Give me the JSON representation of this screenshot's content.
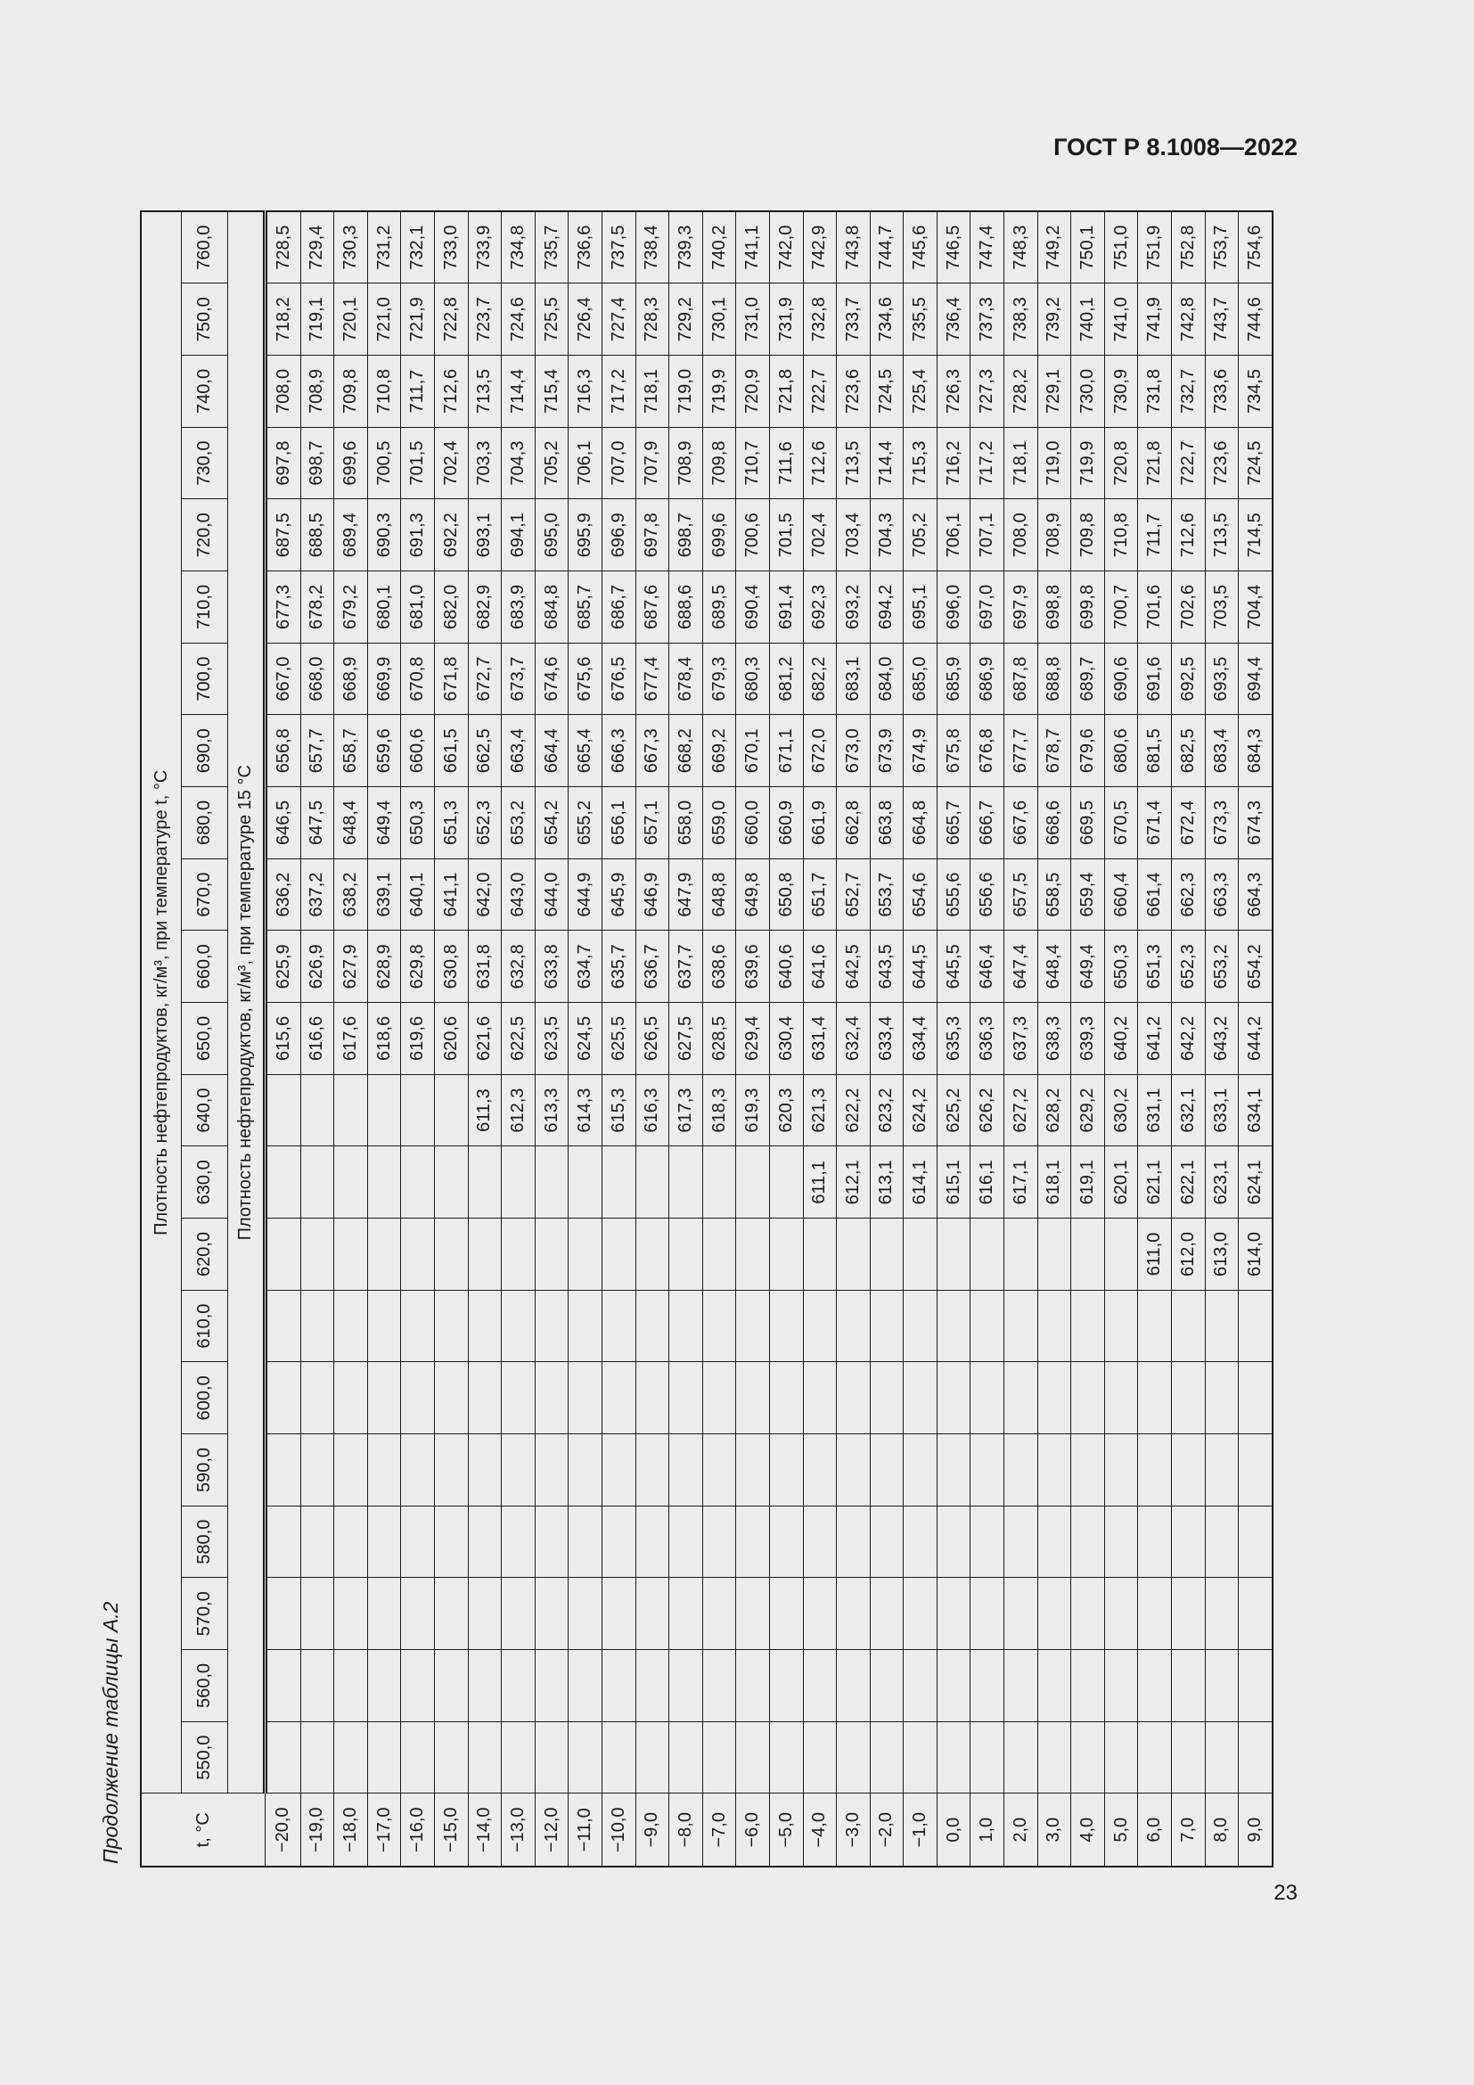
{
  "header": {
    "doc_code": "ГОСТ Р 8.1008—2022"
  },
  "caption": "Продолжение таблицы А.2",
  "footer": {
    "page_number": "23"
  },
  "table": {
    "t_header": "t, °C",
    "top_title": "Плотность нефтепродуктов, кг/м³, при температуре t, °C",
    "bottom_title": "Плотность нефтепродуктов, кг/м³, при температуре 15 °C",
    "densities": [
      "550,0",
      "560,0",
      "570,0",
      "580,0",
      "590,0",
      "600,0",
      "610,0",
      "620,0",
      "630,0",
      "640,0",
      "650,0",
      "660,0",
      "670,0",
      "680,0",
      "690,0",
      "700,0",
      "710,0",
      "720,0",
      "730,0",
      "740,0",
      "750,0",
      "760,0"
    ],
    "rows": [
      {
        "t": "−20,0",
        "values": [
          "",
          "",
          "",
          "",
          "",
          "",
          "",
          "",
          "",
          "",
          "615,6",
          "625,9",
          "636,2",
          "646,5",
          "656,8",
          "667,0",
          "677,3",
          "687,5",
          "697,8",
          "708,0",
          "718,2",
          "728,5"
        ]
      },
      {
        "t": "−19,0",
        "values": [
          "",
          "",
          "",
          "",
          "",
          "",
          "",
          "",
          "",
          "",
          "616,6",
          "626,9",
          "637,2",
          "647,5",
          "657,7",
          "668,0",
          "678,2",
          "688,5",
          "698,7",
          "708,9",
          "719,1",
          "729,4"
        ]
      },
      {
        "t": "−18,0",
        "values": [
          "",
          "",
          "",
          "",
          "",
          "",
          "",
          "",
          "",
          "",
          "617,6",
          "627,9",
          "638,2",
          "648,4",
          "658,7",
          "668,9",
          "679,2",
          "689,4",
          "699,6",
          "709,8",
          "720,1",
          "730,3"
        ]
      },
      {
        "t": "−17,0",
        "values": [
          "",
          "",
          "",
          "",
          "",
          "",
          "",
          "",
          "",
          "",
          "618,6",
          "628,9",
          "639,1",
          "649,4",
          "659,6",
          "669,9",
          "680,1",
          "690,3",
          "700,5",
          "710,8",
          "721,0",
          "731,2"
        ]
      },
      {
        "t": "−16,0",
        "values": [
          "",
          "",
          "",
          "",
          "",
          "",
          "",
          "",
          "",
          "",
          "619,6",
          "629,8",
          "640,1",
          "650,3",
          "660,6",
          "670,8",
          "681,0",
          "691,3",
          "701,5",
          "711,7",
          "721,9",
          "732,1"
        ]
      },
      {
        "t": "−15,0",
        "values": [
          "",
          "",
          "",
          "",
          "",
          "",
          "",
          "",
          "",
          "",
          "620,6",
          "630,8",
          "641,1",
          "651,3",
          "661,5",
          "671,8",
          "682,0",
          "692,2",
          "702,4",
          "712,6",
          "722,8",
          "733,0"
        ]
      },
      {
        "t": "−14,0",
        "values": [
          "",
          "",
          "",
          "",
          "",
          "",
          "",
          "",
          "",
          "611,3",
          "621,6",
          "631,8",
          "642,0",
          "652,3",
          "662,5",
          "672,7",
          "682,9",
          "693,1",
          "703,3",
          "713,5",
          "723,7",
          "733,9"
        ]
      },
      {
        "t": "−13,0",
        "values": [
          "",
          "",
          "",
          "",
          "",
          "",
          "",
          "",
          "",
          "612,3",
          "622,5",
          "632,8",
          "643,0",
          "653,2",
          "663,4",
          "673,7",
          "683,9",
          "694,1",
          "704,3",
          "714,4",
          "724,6",
          "734,8"
        ]
      },
      {
        "t": "−12,0",
        "values": [
          "",
          "",
          "",
          "",
          "",
          "",
          "",
          "",
          "",
          "613,3",
          "623,5",
          "633,8",
          "644,0",
          "654,2",
          "664,4",
          "674,6",
          "684,8",
          "695,0",
          "705,2",
          "715,4",
          "725,5",
          "735,7"
        ]
      },
      {
        "t": "−11,0",
        "values": [
          "",
          "",
          "",
          "",
          "",
          "",
          "",
          "",
          "",
          "614,3",
          "624,5",
          "634,7",
          "644,9",
          "655,2",
          "665,4",
          "675,6",
          "685,7",
          "695,9",
          "706,1",
          "716,3",
          "726,4",
          "736,6"
        ]
      },
      {
        "t": "−10,0",
        "values": [
          "",
          "",
          "",
          "",
          "",
          "",
          "",
          "",
          "",
          "615,3",
          "625,5",
          "635,7",
          "645,9",
          "656,1",
          "666,3",
          "676,5",
          "686,7",
          "696,9",
          "707,0",
          "717,2",
          "727,4",
          "737,5"
        ]
      },
      {
        "t": "−9,0",
        "values": [
          "",
          "",
          "",
          "",
          "",
          "",
          "",
          "",
          "",
          "616,3",
          "626,5",
          "636,7",
          "646,9",
          "657,1",
          "667,3",
          "677,4",
          "687,6",
          "697,8",
          "707,9",
          "718,1",
          "728,3",
          "738,4"
        ]
      },
      {
        "t": "−8,0",
        "values": [
          "",
          "",
          "",
          "",
          "",
          "",
          "",
          "",
          "",
          "617,3",
          "627,5",
          "637,7",
          "647,9",
          "658,0",
          "668,2",
          "678,4",
          "688,6",
          "698,7",
          "708,9",
          "719,0",
          "729,2",
          "739,3"
        ]
      },
      {
        "t": "−7,0",
        "values": [
          "",
          "",
          "",
          "",
          "",
          "",
          "",
          "",
          "",
          "618,3",
          "628,5",
          "638,6",
          "648,8",
          "659,0",
          "669,2",
          "679,3",
          "689,5",
          "699,6",
          "709,8",
          "719,9",
          "730,1",
          "740,2"
        ]
      },
      {
        "t": "−6,0",
        "values": [
          "",
          "",
          "",
          "",
          "",
          "",
          "",
          "",
          "",
          "619,3",
          "629,4",
          "639,6",
          "649,8",
          "660,0",
          "670,1",
          "680,3",
          "690,4",
          "700,6",
          "710,7",
          "720,9",
          "731,0",
          "741,1"
        ]
      },
      {
        "t": "−5,0",
        "values": [
          "",
          "",
          "",
          "",
          "",
          "",
          "",
          "",
          "",
          "620,3",
          "630,4",
          "640,6",
          "650,8",
          "660,9",
          "671,1",
          "681,2",
          "691,4",
          "701,5",
          "711,6",
          "721,8",
          "731,9",
          "742,0"
        ]
      },
      {
        "t": "−4,0",
        "values": [
          "",
          "",
          "",
          "",
          "",
          "",
          "",
          "",
          "611,1",
          "621,3",
          "631,4",
          "641,6",
          "651,7",
          "661,9",
          "672,0",
          "682,2",
          "692,3",
          "702,4",
          "712,6",
          "722,7",
          "732,8",
          "742,9"
        ]
      },
      {
        "t": "−3,0",
        "values": [
          "",
          "",
          "",
          "",
          "",
          "",
          "",
          "",
          "612,1",
          "622,2",
          "632,4",
          "642,5",
          "652,7",
          "662,8",
          "673,0",
          "683,1",
          "693,2",
          "703,4",
          "713,5",
          "723,6",
          "733,7",
          "743,8"
        ]
      },
      {
        "t": "−2,0",
        "values": [
          "",
          "",
          "",
          "",
          "",
          "",
          "",
          "",
          "613,1",
          "623,2",
          "633,4",
          "643,5",
          "653,7",
          "663,8",
          "673,9",
          "684,0",
          "694,2",
          "704,3",
          "714,4",
          "724,5",
          "734,6",
          "744,7"
        ]
      },
      {
        "t": "−1,0",
        "values": [
          "",
          "",
          "",
          "",
          "",
          "",
          "",
          "",
          "614,1",
          "624,2",
          "634,4",
          "644,5",
          "654,6",
          "664,8",
          "674,9",
          "685,0",
          "695,1",
          "705,2",
          "715,3",
          "725,4",
          "735,5",
          "745,6"
        ]
      },
      {
        "t": "0,0",
        "values": [
          "",
          "",
          "",
          "",
          "",
          "",
          "",
          "",
          "615,1",
          "625,2",
          "635,3",
          "645,5",
          "655,6",
          "665,7",
          "675,8",
          "685,9",
          "696,0",
          "706,1",
          "716,2",
          "726,3",
          "736,4",
          "746,5"
        ]
      },
      {
        "t": "1,0",
        "values": [
          "",
          "",
          "",
          "",
          "",
          "",
          "",
          "",
          "616,1",
          "626,2",
          "636,3",
          "646,4",
          "656,6",
          "666,7",
          "676,8",
          "686,9",
          "697,0",
          "707,1",
          "717,2",
          "727,3",
          "737,3",
          "747,4"
        ]
      },
      {
        "t": "2,0",
        "values": [
          "",
          "",
          "",
          "",
          "",
          "",
          "",
          "",
          "617,1",
          "627,2",
          "637,3",
          "647,4",
          "657,5",
          "667,6",
          "677,7",
          "687,8",
          "697,9",
          "708,0",
          "718,1",
          "728,2",
          "738,3",
          "748,3"
        ]
      },
      {
        "t": "3,0",
        "values": [
          "",
          "",
          "",
          "",
          "",
          "",
          "",
          "",
          "618,1",
          "628,2",
          "638,3",
          "648,4",
          "658,5",
          "668,6",
          "678,7",
          "688,8",
          "698,8",
          "708,9",
          "719,0",
          "729,1",
          "739,2",
          "749,2"
        ]
      },
      {
        "t": "4,0",
        "values": [
          "",
          "",
          "",
          "",
          "",
          "",
          "",
          "",
          "619,1",
          "629,2",
          "639,3",
          "649,4",
          "659,4",
          "669,5",
          "679,6",
          "689,7",
          "699,8",
          "709,8",
          "719,9",
          "730,0",
          "740,1",
          "750,1"
        ]
      },
      {
        "t": "5,0",
        "values": [
          "",
          "",
          "",
          "",
          "",
          "",
          "",
          "",
          "620,1",
          "630,2",
          "640,2",
          "650,3",
          "660,4",
          "670,5",
          "680,6",
          "690,6",
          "700,7",
          "710,8",
          "720,8",
          "730,9",
          "741,0",
          "751,0"
        ]
      },
      {
        "t": "6,0",
        "values": [
          "",
          "",
          "",
          "",
          "",
          "",
          "",
          "611,0",
          "621,1",
          "631,1",
          "641,2",
          "651,3",
          "661,4",
          "671,4",
          "681,5",
          "691,6",
          "701,6",
          "711,7",
          "721,8",
          "731,8",
          "741,9",
          "751,9"
        ]
      },
      {
        "t": "7,0",
        "values": [
          "",
          "",
          "",
          "",
          "",
          "",
          "",
          "612,0",
          "622,1",
          "632,1",
          "642,2",
          "652,3",
          "662,3",
          "672,4",
          "682,5",
          "692,5",
          "702,6",
          "712,6",
          "722,7",
          "732,7",
          "742,8",
          "752,8"
        ]
      },
      {
        "t": "8,0",
        "values": [
          "",
          "",
          "",
          "",
          "",
          "",
          "",
          "613,0",
          "623,1",
          "633,1",
          "643,2",
          "653,2",
          "663,3",
          "673,3",
          "683,4",
          "693,5",
          "703,5",
          "713,5",
          "723,6",
          "733,6",
          "743,7",
          "753,7"
        ]
      },
      {
        "t": "9,0",
        "values": [
          "",
          "",
          "",
          "",
          "",
          "",
          "",
          "614,0",
          "624,1",
          "634,1",
          "644,2",
          "654,2",
          "664,3",
          "674,3",
          "684,3",
          "694,4",
          "704,4",
          "714,5",
          "724,5",
          "734,5",
          "744,6",
          "754,6"
        ]
      }
    ]
  }
}
